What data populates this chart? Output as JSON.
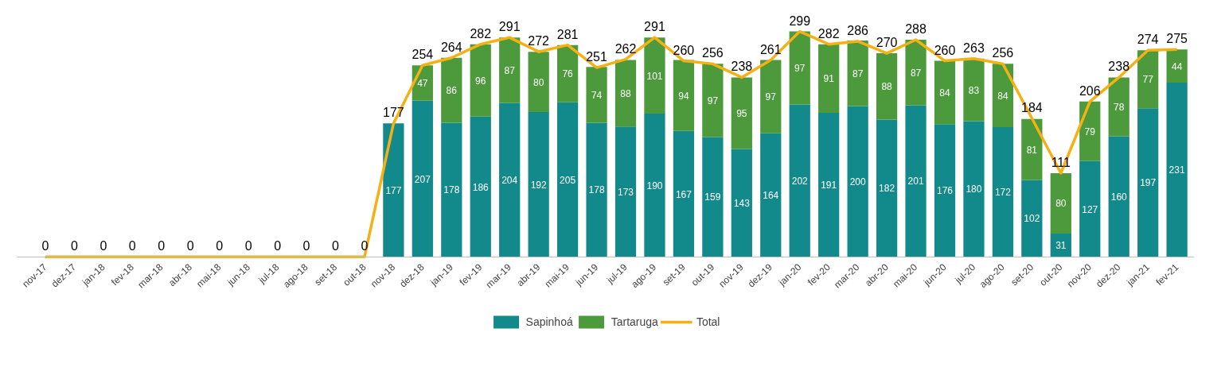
{
  "chart_data": {
    "type": "bar",
    "stacked": true,
    "grid": false,
    "legend": "bottom",
    "tick_labels": "x",
    "categories": [
      "nov-17",
      "dez-17",
      "jan-18",
      "fev-18",
      "mar-18",
      "abr-18",
      "mai-18",
      "jun-18",
      "jul-18",
      "ago-18",
      "set-18",
      "out-18",
      "nov-18",
      "dez-18",
      "jan-19",
      "fev-19",
      "mar-19",
      "abr-19",
      "mai-19",
      "jun-19",
      "jul-19",
      "ago-19",
      "set-19",
      "out-19",
      "nov-19",
      "dez-19",
      "jan-20",
      "fev-20",
      "mar-20",
      "abr-20",
      "mai-20",
      "jun-20",
      "jul-20",
      "ago-20",
      "set-20",
      "out-20",
      "nov-20",
      "dez-20",
      "jan-21",
      "fev-21"
    ],
    "series": [
      {
        "name": "Sapinhoá",
        "color": "#12898a",
        "values": [
          0,
          0,
          0,
          0,
          0,
          0,
          0,
          0,
          0,
          0,
          0,
          0,
          177,
          207,
          178,
          186,
          204,
          192,
          205,
          178,
          173,
          190,
          167,
          159,
          143,
          164,
          202,
          191,
          200,
          182,
          201,
          176,
          180,
          172,
          102,
          31,
          127,
          160,
          197,
          231
        ],
        "value_labels": [
          null,
          null,
          null,
          null,
          null,
          null,
          null,
          null,
          null,
          null,
          null,
          null,
          "177",
          "207",
          "178",
          "186",
          "204",
          "192",
          "205",
          "178",
          "173",
          "190",
          "167",
          "159",
          "143",
          "164",
          "202",
          "191",
          "200",
          "182",
          "201",
          "176",
          "180",
          "172",
          "102",
          "31",
          "127",
          "160",
          "197",
          "231"
        ]
      },
      {
        "name": "Tartaruga",
        "color": "#4c9a3c",
        "values": [
          0,
          0,
          0,
          0,
          0,
          0,
          0,
          0,
          0,
          0,
          0,
          0,
          0,
          47,
          86,
          96,
          87,
          80,
          76,
          74,
          88,
          101,
          94,
          97,
          95,
          97,
          97,
          91,
          87,
          88,
          87,
          84,
          83,
          84,
          81,
          80,
          79,
          78,
          77,
          44
        ],
        "value_labels": [
          null,
          null,
          null,
          null,
          null,
          null,
          null,
          null,
          null,
          null,
          null,
          null,
          null,
          "47",
          "86",
          "96",
          "87",
          "80",
          "76",
          "74",
          "88",
          "101",
          "94",
          "97",
          "95",
          "97",
          "97",
          "91",
          "87",
          "88",
          "87",
          "84",
          "83",
          "84",
          "81",
          "80",
          "79",
          "78",
          "77",
          "44"
        ]
      },
      {
        "name": "Total",
        "type": "line",
        "color": "#f5b014",
        "values": [
          0,
          0,
          0,
          0,
          0,
          0,
          0,
          0,
          0,
          0,
          0,
          0,
          177,
          254,
          264,
          282,
          291,
          272,
          281,
          251,
          262,
          291,
          260,
          256,
          238,
          261,
          299,
          282,
          286,
          270,
          288,
          260,
          263,
          256,
          184,
          111,
          206,
          238,
          274,
          275
        ],
        "value_labels": [
          "0",
          "0",
          "0",
          "0",
          "0",
          "0",
          "0",
          "0",
          "0",
          "0",
          "0",
          "0",
          "177",
          "254",
          "264",
          "282",
          "291",
          "272",
          "281",
          "251",
          "262",
          "291",
          "260",
          "256",
          "238",
          "261",
          "299",
          "282",
          "286",
          "270",
          "288",
          "260",
          "263",
          "256",
          "184",
          "111",
          "206",
          "238",
          "274",
          "275"
        ]
      }
    ]
  }
}
